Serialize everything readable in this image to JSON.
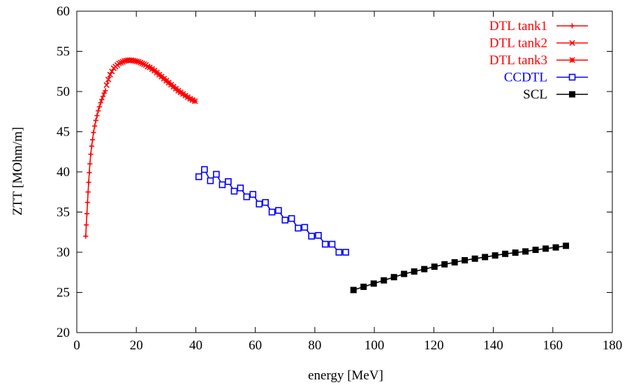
{
  "chart_data": {
    "type": "line",
    "title": "",
    "xlabel": "energy [MeV]",
    "ylabel": "ZTT [MOhm/m]",
    "xlim": [
      0,
      180
    ],
    "ylim": [
      20,
      60
    ],
    "xticks": [
      0,
      20,
      40,
      60,
      80,
      100,
      120,
      140,
      160,
      180
    ],
    "yticks": [
      20,
      25,
      30,
      35,
      40,
      45,
      50,
      55,
      60
    ],
    "grid": false,
    "legend_position": "top-right",
    "series": [
      {
        "name": "DTL tank1",
        "color": "#ff0000",
        "marker": "plus",
        "label_color": "#ff0000",
        "x": [
          3.0,
          3.2,
          3.4,
          3.6,
          3.8,
          4.0,
          4.2,
          4.4,
          4.7,
          5.0,
          5.3,
          5.6,
          6.0,
          6.4,
          6.8,
          7.2,
          7.6,
          8.0,
          8.4,
          8.8,
          9.2,
          9.6
        ],
        "y": [
          32.0,
          33.4,
          34.8,
          36.2,
          37.5,
          38.7,
          39.9,
          41.0,
          42.2,
          43.2,
          44.0,
          44.9,
          45.7,
          46.4,
          47.0,
          47.6,
          48.1,
          48.6,
          49.0,
          49.4,
          49.8,
          50.1
        ]
      },
      {
        "name": "DTL tank2",
        "color": "#ff0000",
        "marker": "cross",
        "label_color": "#ff0000",
        "x": [
          10.0,
          10.6,
          11.2,
          11.8,
          12.4,
          13.0,
          13.6,
          14.2,
          14.8,
          15.4,
          16.0,
          16.6,
          17.2,
          17.8,
          18.4,
          19.0,
          19.6,
          20.2,
          20.8,
          21.4,
          22.0,
          22.6,
          23.2,
          23.8
        ],
        "y": [
          50.8,
          51.5,
          52.1,
          52.5,
          52.9,
          53.1,
          53.3,
          53.5,
          53.6,
          53.7,
          53.8,
          53.85,
          53.9,
          53.9,
          53.9,
          53.85,
          53.8,
          53.75,
          53.7,
          53.6,
          53.5,
          53.4,
          53.3,
          53.1
        ]
      },
      {
        "name": "DTL tank3",
        "color": "#ff0000",
        "marker": "star",
        "label_color": "#ff0000",
        "x": [
          24.5,
          25.3,
          26.1,
          26.9,
          27.7,
          28.5,
          29.3,
          30.1,
          30.9,
          31.7,
          32.5,
          33.3,
          34.1,
          34.9,
          35.7,
          36.5,
          37.3,
          38.1,
          38.9,
          39.7
        ],
        "y": [
          53.0,
          52.8,
          52.6,
          52.35,
          52.1,
          51.85,
          51.6,
          51.35,
          51.1,
          50.85,
          50.6,
          50.35,
          50.1,
          49.9,
          49.7,
          49.5,
          49.3,
          49.1,
          48.95,
          48.8
        ]
      },
      {
        "name": "CCDTL",
        "color": "#0000ff",
        "marker": "open-square",
        "label_color": "#0000ff",
        "x": [
          41.0,
          42.9,
          44.9,
          46.9,
          48.9,
          50.9,
          52.9,
          55.0,
          57.1,
          59.2,
          61.3,
          63.4,
          65.6,
          67.8,
          70.0,
          72.2,
          74.4,
          76.6,
          78.9,
          81.2,
          83.5,
          85.8,
          88.1,
          90.4
        ],
        "y": [
          39.4,
          40.3,
          38.9,
          39.7,
          38.4,
          38.8,
          37.6,
          38.0,
          36.9,
          37.2,
          36.0,
          36.2,
          35.0,
          35.2,
          34.0,
          34.2,
          33.0,
          33.1,
          32.0,
          32.1,
          31.0,
          31.0,
          30.0,
          30.0
        ]
      },
      {
        "name": "SCL",
        "color": "#000000",
        "marker": "filled-square",
        "label_color": "#000000",
        "x": [
          93.0,
          96.4,
          99.8,
          103.2,
          106.6,
          110.0,
          113.4,
          116.8,
          120.2,
          123.6,
          127.0,
          130.4,
          133.8,
          137.2,
          140.6,
          144.0,
          147.4,
          150.8,
          154.2,
          157.6,
          161.0,
          164.4
        ],
        "y": [
          25.3,
          25.7,
          26.1,
          26.5,
          26.9,
          27.3,
          27.6,
          27.9,
          28.2,
          28.5,
          28.75,
          29.0,
          29.2,
          29.4,
          29.6,
          29.8,
          29.95,
          30.1,
          30.3,
          30.45,
          30.6,
          30.8
        ]
      }
    ]
  }
}
